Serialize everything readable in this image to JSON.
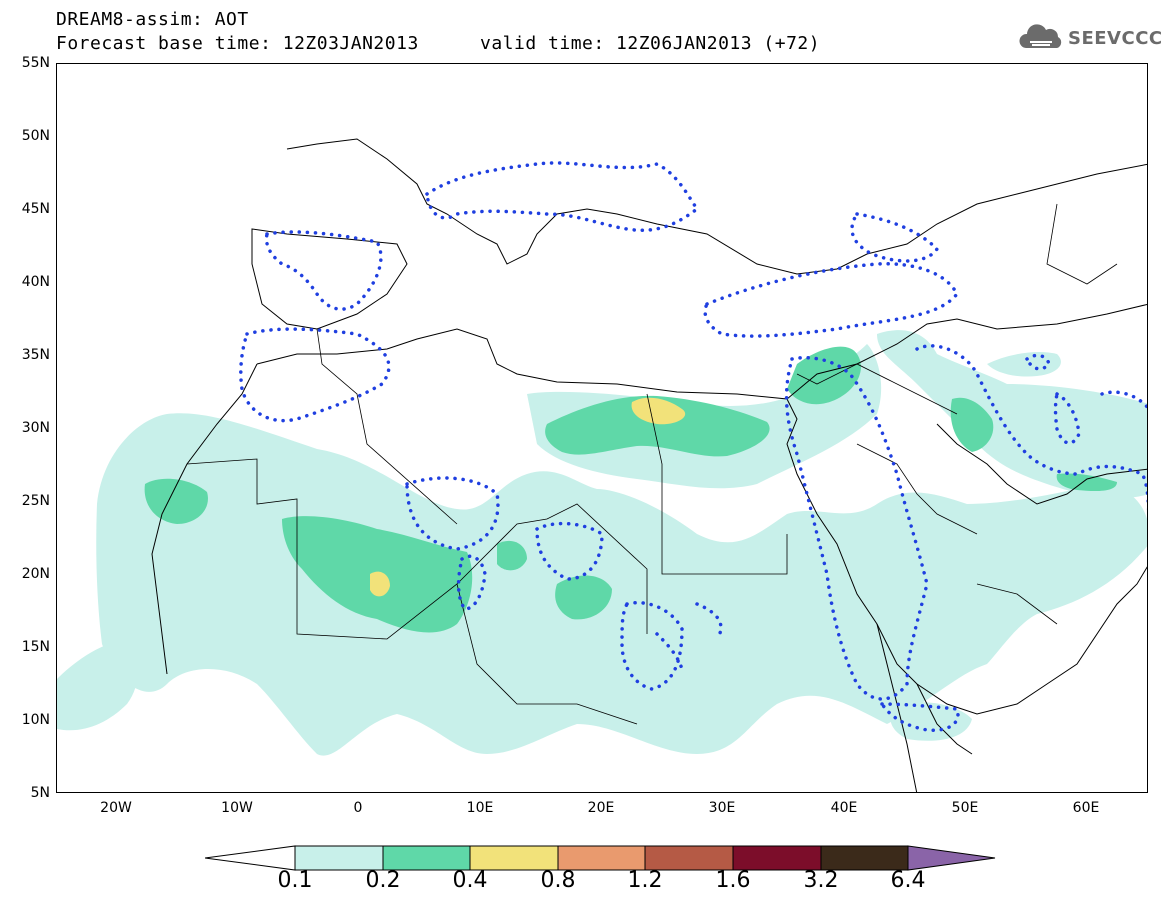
{
  "header": {
    "line1": "DREAM8-assim: AOT",
    "base_time": "Forecast base time: 12Z03JAN2013",
    "valid_time": "valid time: 12Z06JAN2013 (+72)"
  },
  "logo": {
    "text": "SEEVCCC",
    "icon": "cloud-icon"
  },
  "map": {
    "lat_labels": [
      "55N",
      "50N",
      "45N",
      "40N",
      "35N",
      "30N",
      "25N",
      "20N",
      "15N",
      "10N",
      "5N"
    ],
    "lon_labels": [
      "20W",
      "10W",
      "0",
      "10E",
      "20E",
      "30E",
      "40E",
      "50E",
      "60E"
    ],
    "lon_range": [
      -25,
      65
    ],
    "lat_range": [
      5,
      55
    ],
    "field": "AOT",
    "contour_colors": {
      "0.1": "#c8f0ea",
      "0.2": "#5fd8a8",
      "0.4": "#f2e27a",
      "dotted_contour": "#1f3fe0"
    }
  },
  "colorbar": {
    "levels": [
      "0.1",
      "0.2",
      "0.4",
      "0.8",
      "1.2",
      "1.6",
      "3.2",
      "6.4"
    ],
    "colors": [
      "#ffffff",
      "#c8f0ea",
      "#5fd8a8",
      "#f2e27a",
      "#e99a6e",
      "#b55a45",
      "#7c0d2a",
      "#3b2a1a",
      "#8a64a8"
    ]
  }
}
